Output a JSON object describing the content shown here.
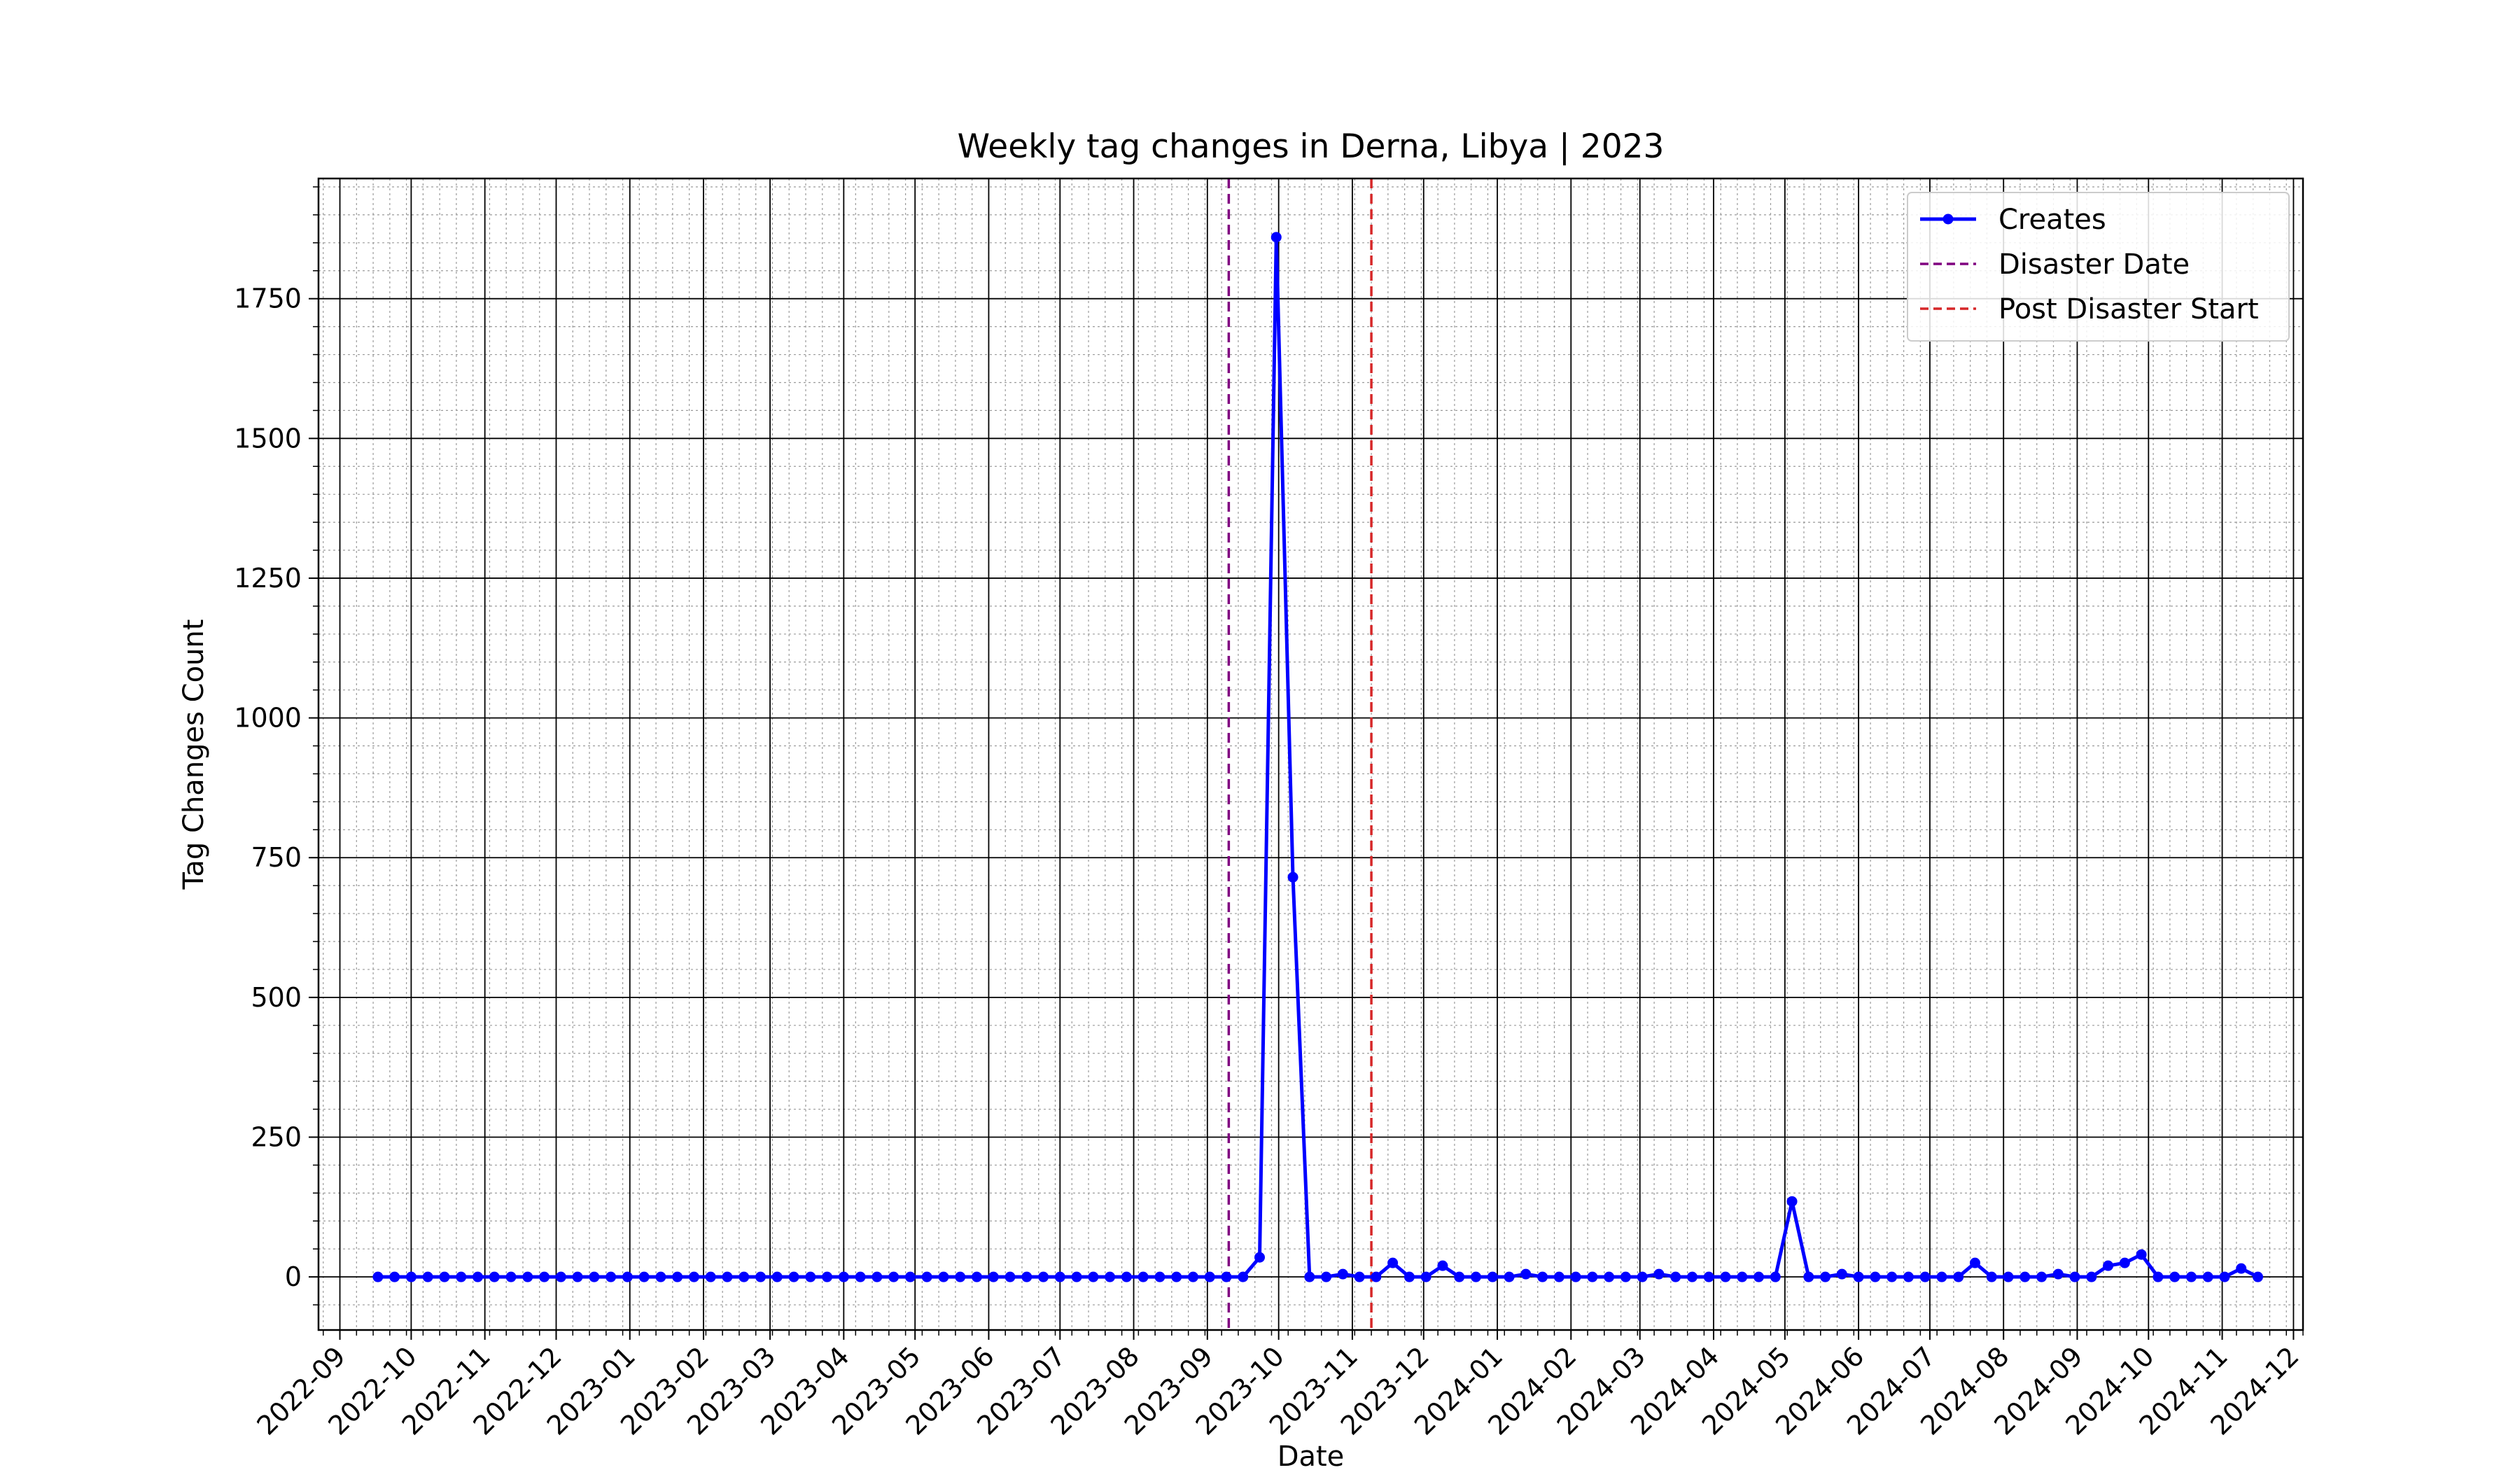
{
  "chart_data": {
    "type": "line",
    "title": "Weekly tag changes in Derna, Libya | 2023",
    "xlabel": "Date",
    "ylabel": "Tag Changes Count",
    "x_type": "date",
    "xlim": [
      "2022-08-23",
      "2024-12-05"
    ],
    "ylim": [
      -95,
      1965
    ],
    "yticks": [
      0,
      250,
      500,
      750,
      1000,
      1250,
      1500,
      1750
    ],
    "xticks": [
      "2022-09",
      "2022-10",
      "2022-11",
      "2022-12",
      "2023-01",
      "2023-02",
      "2023-03",
      "2023-04",
      "2023-05",
      "2023-06",
      "2023-07",
      "2023-08",
      "2023-09",
      "2023-10",
      "2023-11",
      "2023-12",
      "2024-01",
      "2024-02",
      "2024-03",
      "2024-04",
      "2024-05",
      "2024-06",
      "2024-07",
      "2024-08",
      "2024-09",
      "2024-10",
      "2024-11",
      "2024-12"
    ],
    "grid": true,
    "legend_position": "top-right",
    "series": [
      {
        "name": "Creates",
        "color": "#0000ff",
        "marker": "circle",
        "start": "2022-09-17",
        "interval_days": 7,
        "values": [
          0,
          0,
          0,
          0,
          0,
          0,
          0,
          0,
          0,
          0,
          0,
          0,
          0,
          0,
          0,
          0,
          0,
          0,
          0,
          0,
          0,
          0,
          0,
          0,
          0,
          0,
          0,
          0,
          0,
          0,
          0,
          0,
          0,
          0,
          0,
          0,
          0,
          0,
          0,
          0,
          0,
          0,
          0,
          0,
          0,
          0,
          0,
          0,
          0,
          0,
          0,
          0,
          0,
          35,
          1860,
          715,
          0,
          0,
          5,
          0,
          0,
          25,
          0,
          0,
          20,
          0,
          0,
          0,
          0,
          5,
          0,
          0,
          0,
          0,
          0,
          0,
          0,
          5,
          0,
          0,
          0,
          0,
          0,
          0,
          0,
          135,
          0,
          0,
          5,
          0,
          0,
          0,
          0,
          0,
          0,
          0,
          25,
          0,
          0,
          0,
          0,
          5,
          0,
          0,
          20,
          25,
          40,
          0,
          0,
          0,
          0,
          0,
          15,
          0
        ]
      }
    ],
    "vlines": [
      {
        "name": "Disaster Date",
        "date": "2023-09-10",
        "color": "#800080",
        "style": "dashed"
      },
      {
        "name": "Post Disaster Start",
        "date": "2023-11-09",
        "color": "#d62728",
        "style": "dashed"
      }
    ]
  }
}
